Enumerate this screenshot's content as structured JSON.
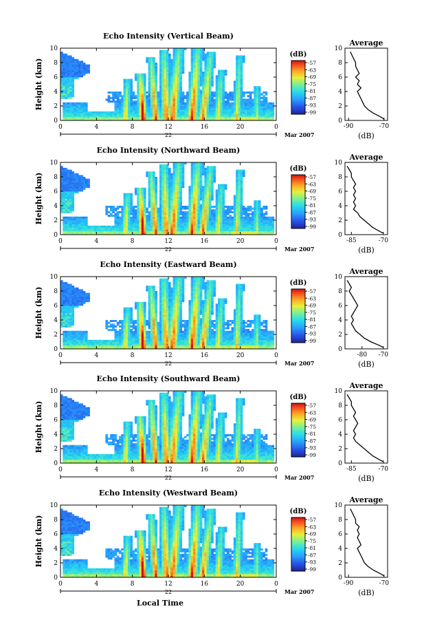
{
  "page": {
    "xlabel": "Local Time"
  },
  "chart_data": [
    {
      "type": "heatmap",
      "title": "Echo Intensity (Vertical Beam)",
      "ylabel": "Height (km)",
      "date_label": "22",
      "month_label": "Mar 2007",
      "x_ticks": [
        "0",
        "4",
        "8",
        "12",
        "16",
        "20",
        "0"
      ],
      "xlim": [
        0,
        24
      ],
      "y_ticks": [
        "0",
        "2",
        "4",
        "6",
        "8",
        "10"
      ],
      "ylim": [
        0,
        10
      ],
      "colorbar": {
        "unit": "(dB)",
        "ticks": [
          "-57",
          "-63",
          "-69",
          "-75",
          "-81",
          "-87",
          "-93",
          "-99"
        ],
        "range": [
          -99,
          -57
        ]
      },
      "average": {
        "title": "Average",
        "xlabel": "(dB)",
        "x_ticks": [
          "-90",
          "-70"
        ],
        "xlim": [
          -92,
          -68
        ],
        "y_ticks": [
          "0",
          "2",
          "4",
          "6",
          "8",
          "10"
        ],
        "ylim": [
          0,
          10
        ],
        "profile": [
          {
            "h": 0.2,
            "db": -70
          },
          {
            "h": 0.5,
            "db": -72
          },
          {
            "h": 1.0,
            "db": -76
          },
          {
            "h": 1.5,
            "db": -79
          },
          {
            "h": 2.0,
            "db": -81
          },
          {
            "h": 2.5,
            "db": -82
          },
          {
            "h": 3.0,
            "db": -83
          },
          {
            "h": 3.5,
            "db": -84
          },
          {
            "h": 4.0,
            "db": -85
          },
          {
            "h": 4.5,
            "db": -83
          },
          {
            "h": 5.0,
            "db": -85
          },
          {
            "h": 5.5,
            "db": -84
          },
          {
            "h": 6.0,
            "db": -86
          },
          {
            "h": 6.5,
            "db": -84
          },
          {
            "h": 7.0,
            "db": -85
          },
          {
            "h": 7.5,
            "db": -86
          },
          {
            "h": 8.0,
            "db": -86
          },
          {
            "h": 8.5,
            "db": -87
          },
          {
            "h": 9.0,
            "db": -88
          },
          {
            "h": 9.5,
            "db": -89
          }
        ]
      }
    },
    {
      "type": "heatmap",
      "title": "Echo Intensity (Northward Beam)",
      "ylabel": "Height (km)",
      "date_label": "22",
      "month_label": "Mar 2007",
      "x_ticks": [
        "0",
        "4",
        "8",
        "12",
        "16",
        "20",
        "0"
      ],
      "xlim": [
        0,
        24
      ],
      "y_ticks": [
        "0",
        "2",
        "4",
        "6",
        "8",
        "10"
      ],
      "ylim": [
        0,
        10
      ],
      "colorbar": {
        "unit": "(dB)",
        "ticks": [
          "-57",
          "-63",
          "-69",
          "-75",
          "-81",
          "-87",
          "-93",
          "-99"
        ],
        "range": [
          -99,
          -57
        ]
      },
      "average": {
        "title": "Average",
        "xlabel": "(dB)",
        "x_ticks": [
          "-85",
          "-70"
        ],
        "xlim": [
          -88,
          -68
        ],
        "y_ticks": [
          "0",
          "2",
          "4",
          "6",
          "8",
          "10"
        ],
        "ylim": [
          0,
          10
        ],
        "profile": [
          {
            "h": 0.2,
            "db": -70
          },
          {
            "h": 0.5,
            "db": -72
          },
          {
            "h": 1.0,
            "db": -75
          },
          {
            "h": 1.5,
            "db": -77
          },
          {
            "h": 2.0,
            "db": -79
          },
          {
            "h": 2.5,
            "db": -81
          },
          {
            "h": 3.0,
            "db": -82
          },
          {
            "h": 3.5,
            "db": -84
          },
          {
            "h": 4.0,
            "db": -83
          },
          {
            "h": 4.5,
            "db": -84
          },
          {
            "h": 5.0,
            "db": -83
          },
          {
            "h": 5.5,
            "db": -84
          },
          {
            "h": 6.0,
            "db": -83
          },
          {
            "h": 6.5,
            "db": -84
          },
          {
            "h": 7.0,
            "db": -83
          },
          {
            "h": 7.5,
            "db": -84
          },
          {
            "h": 8.0,
            "db": -85
          },
          {
            "h": 8.5,
            "db": -85
          },
          {
            "h": 9.0,
            "db": -86
          },
          {
            "h": 9.5,
            "db": -87
          }
        ]
      }
    },
    {
      "type": "heatmap",
      "title": "Echo Intensity (Eastward Beam)",
      "ylabel": "Height (km)",
      "date_label": "22",
      "month_label": "Mar 2007",
      "x_ticks": [
        "0",
        "4",
        "8",
        "12",
        "16",
        "20",
        "0"
      ],
      "xlim": [
        0,
        24
      ],
      "y_ticks": [
        "0",
        "2",
        "4",
        "6",
        "8",
        "10"
      ],
      "ylim": [
        0,
        10
      ],
      "colorbar": {
        "unit": "(dB)",
        "ticks": [
          "-57",
          "-63",
          "-69",
          "-75",
          "-81",
          "-87",
          "-93",
          "-99"
        ],
        "range": [
          -99,
          -57
        ]
      },
      "average": {
        "title": "Average",
        "xlabel": "(dB)",
        "x_ticks": [
          "-80",
          "-70"
        ],
        "xlim": [
          -88,
          -68
        ],
        "y_ticks": [
          "0",
          "2",
          "4",
          "6",
          "8",
          "10"
        ],
        "ylim": [
          0,
          10
        ],
        "profile": [
          {
            "h": 0.2,
            "db": -70
          },
          {
            "h": 0.5,
            "db": -72
          },
          {
            "h": 1.0,
            "db": -76
          },
          {
            "h": 1.5,
            "db": -79
          },
          {
            "h": 2.0,
            "db": -81
          },
          {
            "h": 2.5,
            "db": -83
          },
          {
            "h": 3.0,
            "db": -84
          },
          {
            "h": 3.5,
            "db": -85
          },
          {
            "h": 4.0,
            "db": -84
          },
          {
            "h": 4.5,
            "db": -85
          },
          {
            "h": 5.0,
            "db": -84
          },
          {
            "h": 5.5,
            "db": -83
          },
          {
            "h": 6.0,
            "db": -82
          },
          {
            "h": 6.5,
            "db": -83
          },
          {
            "h": 7.0,
            "db": -84
          },
          {
            "h": 7.5,
            "db": -85
          },
          {
            "h": 8.0,
            "db": -86
          },
          {
            "h": 8.5,
            "db": -85
          },
          {
            "h": 9.0,
            "db": -86
          },
          {
            "h": 9.5,
            "db": -87
          }
        ]
      }
    },
    {
      "type": "heatmap",
      "title": "Echo Intensity (Southward Beam)",
      "ylabel": "Height (km)",
      "date_label": "22",
      "month_label": "Mar 2007",
      "x_ticks": [
        "0",
        "4",
        "8",
        "12",
        "16",
        "20",
        "0"
      ],
      "xlim": [
        0,
        24
      ],
      "y_ticks": [
        "0",
        "2",
        "4",
        "6",
        "8",
        "10"
      ],
      "ylim": [
        0,
        10
      ],
      "colorbar": {
        "unit": "(dB)",
        "ticks": [
          "-57",
          "-63",
          "-69",
          "-75",
          "-81",
          "-87",
          "-93",
          "-99"
        ],
        "range": [
          -99,
          -57
        ]
      },
      "average": {
        "title": "Average",
        "xlabel": "(dB)",
        "x_ticks": [
          "-85",
          "-70"
        ],
        "xlim": [
          -88,
          -68
        ],
        "y_ticks": [
          "0",
          "2",
          "4",
          "6",
          "8",
          "10"
        ],
        "ylim": [
          0,
          10
        ],
        "profile": [
          {
            "h": 0.2,
            "db": -70
          },
          {
            "h": 0.5,
            "db": -72
          },
          {
            "h": 1.0,
            "db": -75
          },
          {
            "h": 1.5,
            "db": -77
          },
          {
            "h": 2.0,
            "db": -79
          },
          {
            "h": 2.5,
            "db": -81
          },
          {
            "h": 3.0,
            "db": -83
          },
          {
            "h": 3.5,
            "db": -84
          },
          {
            "h": 4.0,
            "db": -83
          },
          {
            "h": 4.5,
            "db": -84
          },
          {
            "h": 5.0,
            "db": -83
          },
          {
            "h": 5.5,
            "db": -82
          },
          {
            "h": 6.0,
            "db": -83
          },
          {
            "h": 6.5,
            "db": -84
          },
          {
            "h": 7.0,
            "db": -83
          },
          {
            "h": 7.5,
            "db": -84
          },
          {
            "h": 8.0,
            "db": -85
          },
          {
            "h": 8.5,
            "db": -85
          },
          {
            "h": 9.0,
            "db": -86
          },
          {
            "h": 9.5,
            "db": -87
          }
        ]
      }
    },
    {
      "type": "heatmap",
      "title": "Echo Intensity (Westward Beam)",
      "ylabel": "Height (km)",
      "date_label": "22",
      "month_label": "Mar 2007",
      "x_ticks": [
        "0",
        "4",
        "8",
        "12",
        "16",
        "20",
        "0"
      ],
      "xlim": [
        0,
        24
      ],
      "y_ticks": [
        "0",
        "2",
        "4",
        "6",
        "8",
        "10"
      ],
      "ylim": [
        0,
        10
      ],
      "colorbar": {
        "unit": "(dB)",
        "ticks": [
          "-57",
          "-63",
          "-69",
          "-75",
          "-81",
          "-87",
          "-93",
          "-99"
        ],
        "range": [
          -99,
          -57
        ]
      },
      "average": {
        "title": "Average",
        "xlabel": "(dB)",
        "x_ticks": [
          "-90",
          "-70"
        ],
        "xlim": [
          -92,
          -68
        ],
        "y_ticks": [
          "0",
          "2",
          "4",
          "6",
          "8",
          "10"
        ],
        "ylim": [
          0,
          10
        ],
        "profile": [
          {
            "h": 0.2,
            "db": -70
          },
          {
            "h": 0.5,
            "db": -72
          },
          {
            "h": 1.0,
            "db": -76
          },
          {
            "h": 1.5,
            "db": -79
          },
          {
            "h": 2.0,
            "db": -81
          },
          {
            "h": 2.5,
            "db": -82
          },
          {
            "h": 3.0,
            "db": -83
          },
          {
            "h": 3.5,
            "db": -84
          },
          {
            "h": 4.0,
            "db": -85
          },
          {
            "h": 4.5,
            "db": -83
          },
          {
            "h": 5.0,
            "db": -84
          },
          {
            "h": 5.5,
            "db": -85
          },
          {
            "h": 6.0,
            "db": -84
          },
          {
            "h": 6.5,
            "db": -85
          },
          {
            "h": 7.0,
            "db": -84
          },
          {
            "h": 7.5,
            "db": -86
          },
          {
            "h": 8.0,
            "db": -86
          },
          {
            "h": 8.5,
            "db": -87
          },
          {
            "h": 9.0,
            "db": -88
          },
          {
            "h": 9.5,
            "db": -89
          }
        ]
      }
    }
  ]
}
